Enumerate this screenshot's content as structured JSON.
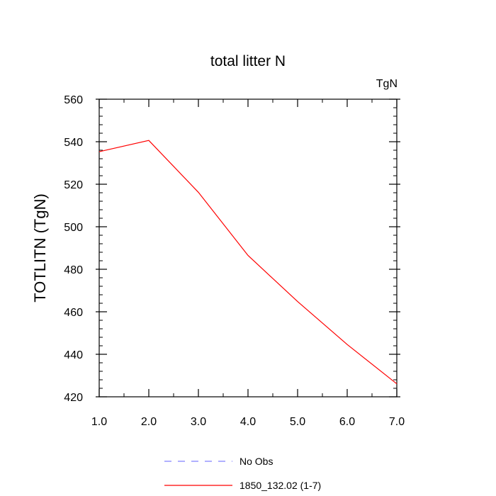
{
  "chart_data": {
    "type": "line",
    "title": "total litter N",
    "units_label": "TgN",
    "xlabel": "",
    "ylabel": "TOTLITN  (TgN)",
    "xlim": [
      1.0,
      7.0
    ],
    "ylim": [
      420,
      560
    ],
    "x_ticks": [
      "1.0",
      "2.0",
      "3.0",
      "4.0",
      "5.0",
      "6.0",
      "7.0"
    ],
    "y_ticks": [
      "420",
      "440",
      "460",
      "480",
      "500",
      "520",
      "540",
      "560"
    ],
    "series": [
      {
        "name": "1850_132.02 (1-7)",
        "color": "#ff0000",
        "style": "solid",
        "x": [
          1,
          2,
          3,
          4,
          5,
          6,
          7
        ],
        "y": [
          535.3,
          540.6,
          516.2,
          486.5,
          464.8,
          444.6,
          426.1
        ]
      }
    ],
    "legend": {
      "placement": "bottom",
      "entries": [
        {
          "label": "No Obs",
          "color": "#8080ff",
          "style": "dashed"
        },
        {
          "label": "1850_132.02 (1-7)",
          "color": "#ff0000",
          "style": "solid"
        }
      ]
    }
  }
}
